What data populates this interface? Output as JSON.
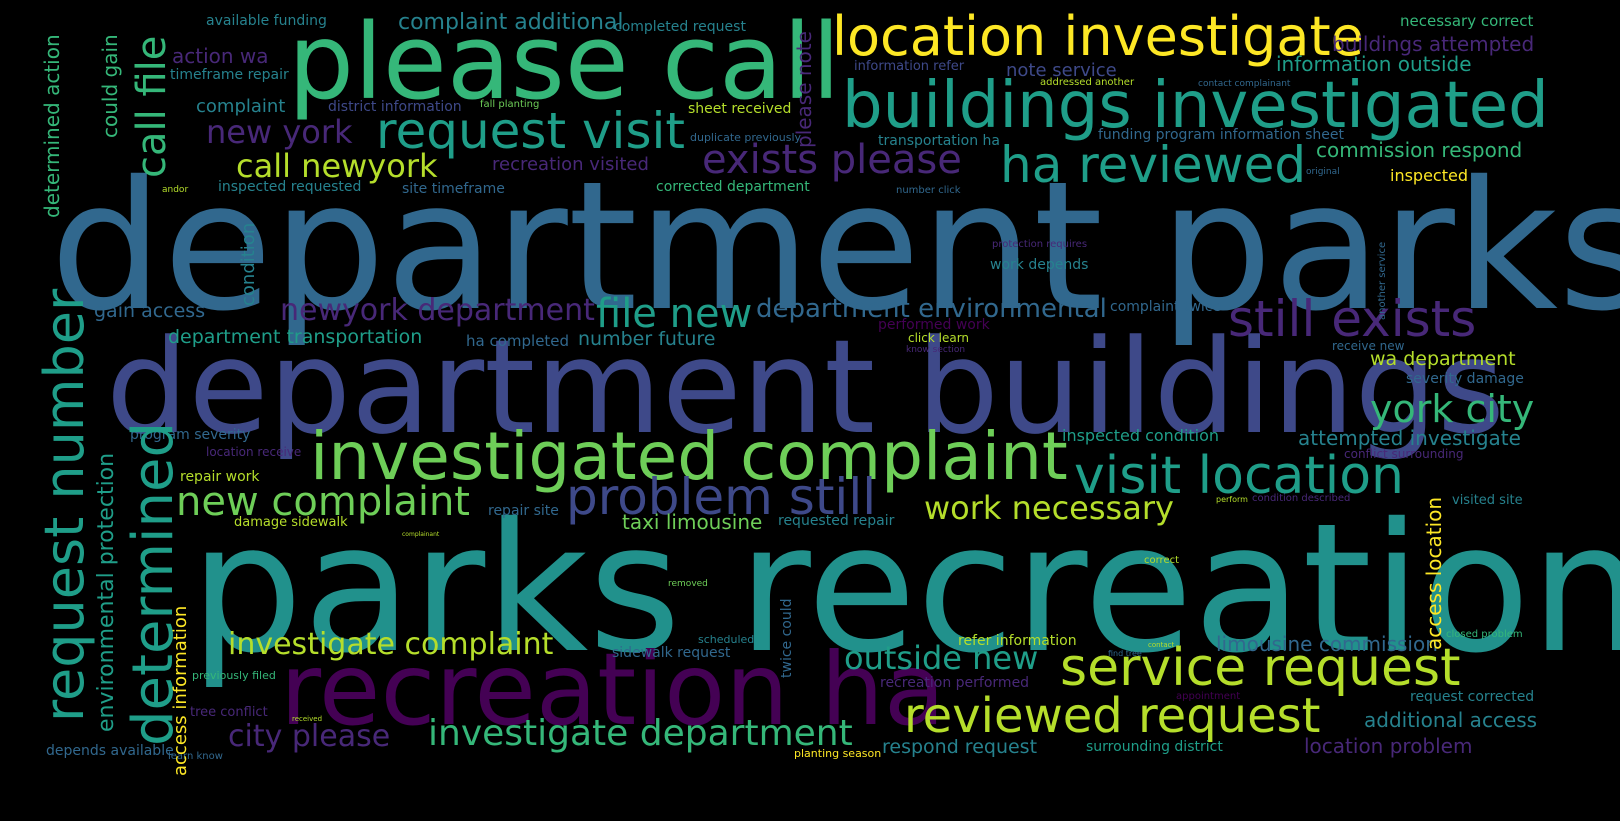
{
  "colors": {
    "background": "#000000",
    "yellow": "#fde725",
    "lime": "#b5de2b",
    "green": "#6ece58",
    "emerald": "#35b779",
    "teal": "#1f9e89",
    "cyan": "#26828e",
    "blue": "#31688e",
    "indigo": "#3e4989",
    "violet": "#482878",
    "purple": "#440154"
  },
  "words": {
    "department_parks": "department parks",
    "parks_recreation": "parks recreation",
    "department_buildings": "department buildings",
    "please_call": "please call",
    "recreation_ha": "recreation ha",
    "investigated_complaint": "investigated complaint",
    "buildings_investigated": "buildings investigated",
    "location_investigate": "location investigate",
    "request_visit": "request visit",
    "service_request": "service request",
    "reviewed_request": "reviewed request",
    "request_number": "request number",
    "determined": "determined",
    "visit_location": "visit location",
    "problem_still": "problem still",
    "still_exists": "still exists",
    "ha_reviewed": "ha reviewed",
    "exists_please": "exists please",
    "call_file": "call file",
    "york_city": "york city",
    "new_complaint": "new complaint",
    "file_new": "file new",
    "investigate_department": "investigate department",
    "investigate_complaint": "investigate complaint",
    "outside_new": "outside new",
    "work_necessary": "work necessary",
    "call_newyork": "call newyork",
    "new_york": "new york",
    "newyork_department": "newyork department",
    "city_please": "city please",
    "department_environmental": "department environmental",
    "complaint_additional": "complaint additional",
    "environmental_protection": "environmental protection",
    "access_location": "access location",
    "limousine_commission": "limousine commission",
    "taxi_limousine": "taxi limousine",
    "information_outside": "information outside",
    "commission_respond": "commission respond",
    "note_service": "note service",
    "please_note": "please note",
    "buildings_attempted": "buildings attempted",
    "attempted_investigate": "attempted investigate",
    "additional_access": "additional access",
    "location_problem": "location problem",
    "respond_request": "respond request",
    "department_transportation": "department transportation",
    "number_future": "number future",
    "wa_department": "wa department",
    "action_wa": "action wa",
    "could_gain": "could gain",
    "determined_action": "determined action",
    "gain_access": "gain access",
    "complaint": "complaint",
    "inspected": "inspected",
    "inspected_condition": "inspected condition",
    "access_information": "access information",
    "condition": "condition",
    "necessary_correct": "necessary correct",
    "available_funding": "available funding",
    "completed_request": "completed request",
    "timeframe_repair": "timeframe repair",
    "information_refer": "information refer",
    "district_information": "district information",
    "sheet_received": "sheet received",
    "fall_planting": "fall planting",
    "addressed_another": "addressed another",
    "contact_complainant": "contact complainant",
    "duplicate_previously": "duplicate previously",
    "transportation_ha": "transportation ha",
    "funding_program_information_sheet": "funding program information sheet",
    "recreation_visited": "recreation visited",
    "inspected_requested": "inspected requested",
    "site_timeframe": "site timeframe",
    "corrected_department": "corrected department",
    "number_click": "number click",
    "original": "original",
    "andor": "andor",
    "protection_requires": "protection requires",
    "work_depends": "work depends",
    "complaint_twice": "complaint twice",
    "performed_work": "performed work",
    "click_learn": "click learn",
    "know_section": "know section",
    "ha_completed": "ha completed",
    "receive_new": "receive new",
    "severity_damage": "severity damage",
    "program_severity": "program severity",
    "location_receive": "location receive",
    "conflict_surrounding": "conflict surrounding",
    "repair_work": "repair work",
    "repair_site": "repair site",
    "damage_sidewalk": "damage sidewalk",
    "requested_repair": "requested repair",
    "condition_described": "condition described",
    "perform": "perform",
    "visited_site": "visited site",
    "correct": "correct",
    "removed": "removed",
    "scheduled": "scheduled",
    "twice_could": "twice could",
    "sidewalk_request": "sidewalk request",
    "refer_information": "refer information",
    "closed_problem": "closed problem",
    "find_tree": "find tree",
    "contact": "contact",
    "previously_filed": "previously filed",
    "recreation_performed": "recreation performed",
    "appointment": "appointment",
    "request_corrected": "request corrected",
    "tree_conflict": "tree conflict",
    "received": "received",
    "depends_available": "depends available",
    "learn_know": "learn know",
    "planting_season": "planting season",
    "surrounding_district": "surrounding district",
    "another_service": "another service",
    "complainant": "complainant"
  }
}
